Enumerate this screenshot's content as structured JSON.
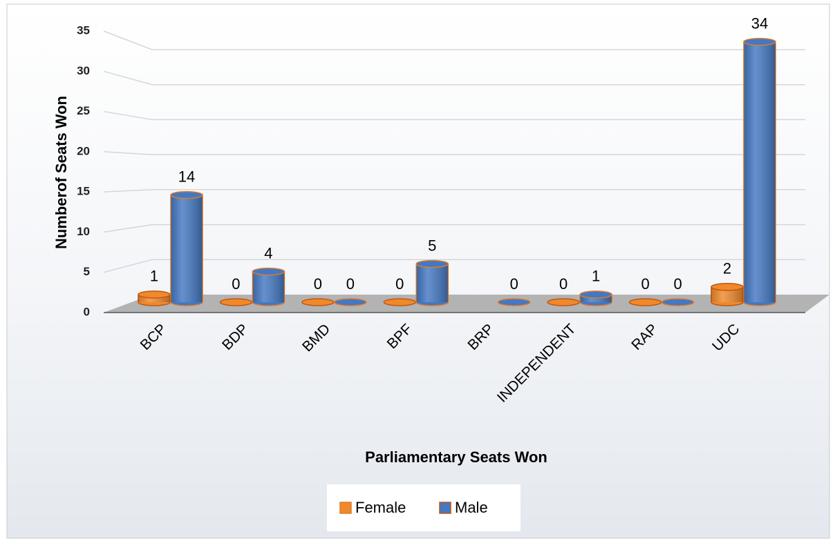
{
  "chart_data": {
    "type": "bar3d",
    "x_label": "Parliamentary Seats Won",
    "y_label": "Numberof Seats Won",
    "categories": [
      "BCP",
      "BDP",
      "BMD",
      "BPF",
      "BRP",
      "INDEPENDENT",
      "RAP",
      "UDC"
    ],
    "series": [
      {
        "name": "Female",
        "color": "#f0892c",
        "values": [
          1,
          0,
          0,
          0,
          null,
          0,
          0,
          2
        ]
      },
      {
        "name": "Male",
        "color": "#4478c2",
        "values": [
          14,
          4,
          0,
          5,
          0,
          1,
          0,
          34
        ]
      }
    ],
    "ylim": [
      0,
      35
    ],
    "yticks": [
      0,
      5,
      10,
      15,
      20,
      25,
      30,
      35
    ],
    "grid": true,
    "legend": "bottom"
  }
}
